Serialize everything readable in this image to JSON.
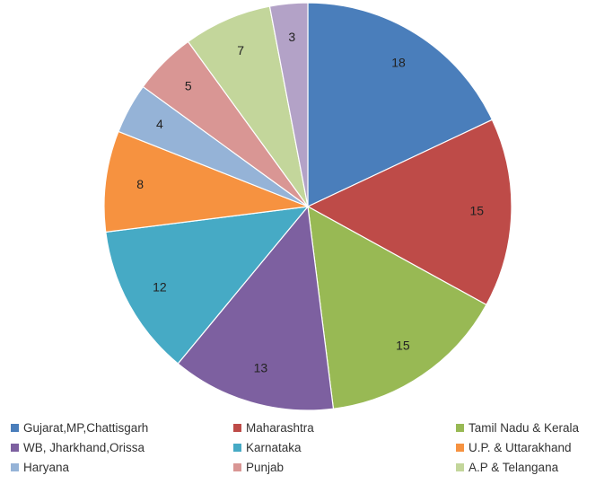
{
  "chart_data": {
    "type": "pie",
    "title": "",
    "start": "12 o'clock",
    "direction": "clockwise",
    "legend_position": "bottom",
    "slices": [
      {
        "label": "Gujarat,MP,Chattisgarh",
        "value": 18,
        "color": "#4a7ebb"
      },
      {
        "label": "Maharashtra",
        "value": 15,
        "color": "#be4b48"
      },
      {
        "label": "Tamil Nadu & Kerala",
        "value": 15,
        "color": "#98b954"
      },
      {
        "label": "WB, Jharkhand,Orissa",
        "value": 13,
        "color": "#7d60a0"
      },
      {
        "label": "Karnataka",
        "value": 12,
        "color": "#46aac5"
      },
      {
        "label": "U.P. & Uttarakhand",
        "value": 8,
        "color": "#f69240"
      },
      {
        "label": "Haryana",
        "value": 4,
        "color": "#95b3d7"
      },
      {
        "label": "Punjab",
        "value": 5,
        "color": "#d99694"
      },
      {
        "label": "A.P & Telangana",
        "value": 7,
        "color": "#c3d69b"
      },
      {
        "label": "",
        "value": 3,
        "color": "#b3a2c7"
      }
    ]
  }
}
